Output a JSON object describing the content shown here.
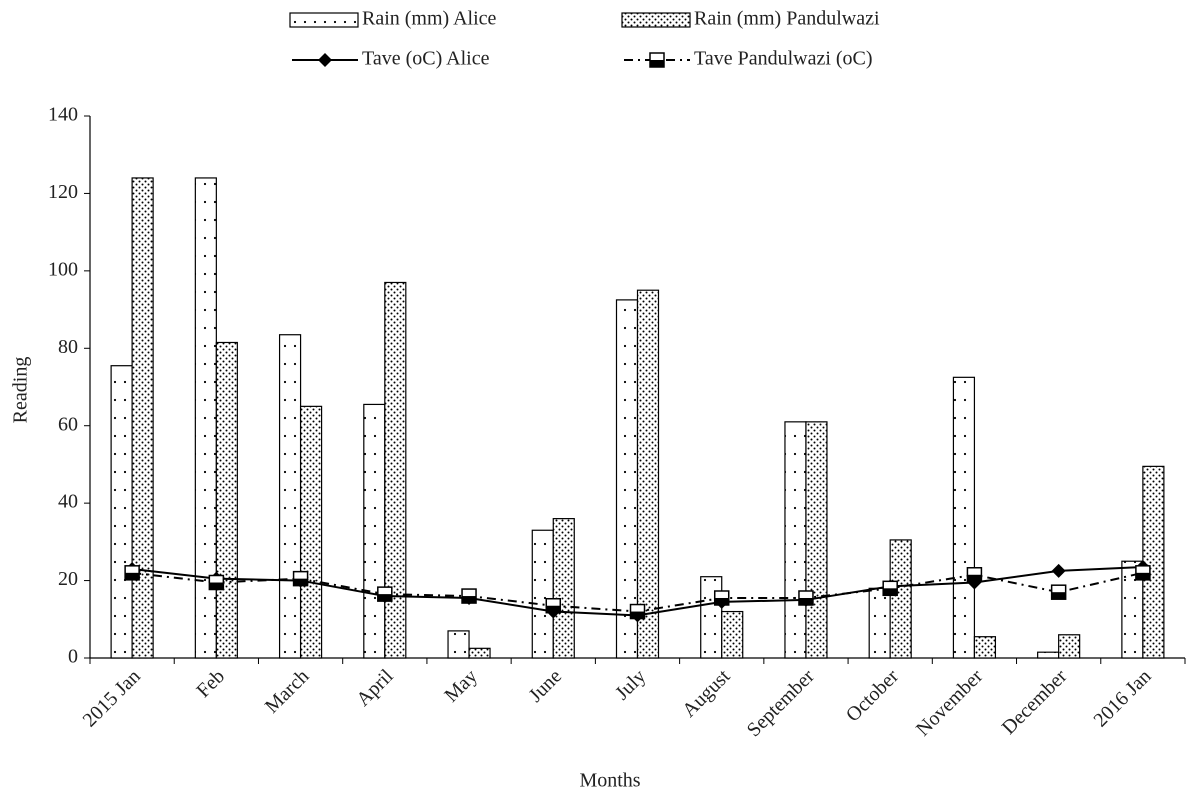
{
  "chart_data": {
    "type": "combo",
    "x_label": "Months",
    "y_label": "Reading",
    "categories": [
      "2015 Jan",
      "Feb",
      "March",
      "April",
      "May",
      "June",
      "July",
      "August",
      "September",
      "October",
      "November",
      "December",
      "2016 Jan"
    ],
    "ylim": [
      0,
      140
    ],
    "yticks": [
      0,
      20,
      40,
      60,
      80,
      100,
      120,
      140
    ],
    "series": [
      {
        "name": "Rain (mm) Alice",
        "type": "bar",
        "color": "#000000",
        "pattern": "sparse-dots",
        "values": [
          75.5,
          124,
          83.5,
          65.5,
          7,
          33,
          92.5,
          21,
          61,
          18,
          72.5,
          1.5,
          25
        ]
      },
      {
        "name": "Rain (mm) Pandulwazi",
        "type": "bar",
        "color": "#000000",
        "pattern": "dense-dots",
        "values": [
          124,
          81.5,
          65,
          97,
          2.5,
          36,
          95,
          12,
          61,
          30.5,
          5.5,
          6,
          49.5
        ]
      },
      {
        "name": "Tave (oC) Alice",
        "type": "line",
        "color": "#000000",
        "dash": "solid",
        "marker": "diamond",
        "values": [
          23,
          20.5,
          20,
          16,
          15.5,
          12,
          11,
          14.5,
          15,
          18.5,
          19.5,
          22.5,
          23.5
        ]
      },
      {
        "name": "Tave Pandulwazi (oC)",
        "type": "line",
        "color": "#000000",
        "dash": "dash-dot",
        "marker": "square",
        "values": [
          22,
          19.5,
          20.5,
          16.5,
          16,
          13.5,
          12,
          15.5,
          15.5,
          18,
          21.5,
          17,
          22
        ]
      }
    ]
  }
}
